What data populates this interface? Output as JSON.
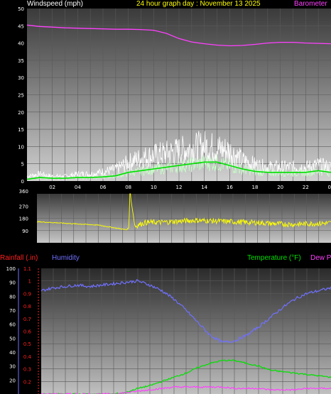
{
  "header": {
    "left_label": "Windspeed (mph)",
    "center_label": "24 hour graph day : November 13 2025",
    "right_label": "Barometer"
  },
  "lower_header": {
    "rainfall_label": "Rainfall (.in)",
    "humidity_label": "Humidity",
    "temperature_label": "Temperature (°F)",
    "dewpoint_label": "Dew P"
  },
  "colors": {
    "windspeed": "#ffffff",
    "wind_avg": "#00e000",
    "barometer": "#ff40ff",
    "direction": "#ffff00",
    "rainfall": "#ff2020",
    "humidity": "#7070ff",
    "temperature": "#00e000",
    "dewpoint": "#ff40ff",
    "header_title": "#ffff00"
  },
  "chart_data": [
    {
      "type": "line",
      "name": "wind-barometer",
      "x_ticks": [
        "02",
        "04",
        "06",
        "08",
        "10",
        "12",
        "14",
        "16",
        "18",
        "20",
        "22",
        "00"
      ],
      "y_ticks": [
        "0",
        "5",
        "10",
        "15",
        "20",
        "25",
        "30",
        "35",
        "40",
        "45",
        "50"
      ],
      "ylim": [
        0,
        50
      ],
      "xlim": [
        0,
        24
      ],
      "grid": true,
      "series": [
        {
          "key": "barometer",
          "x": [
            0,
            1,
            2,
            3,
            4,
            5,
            6,
            7,
            8,
            9,
            10,
            11,
            12,
            13,
            14,
            15,
            16,
            17,
            18,
            19,
            20,
            21,
            22,
            23,
            24
          ],
          "values": [
            45.2,
            44.8,
            44.6,
            44.4,
            44.3,
            44.2,
            44.1,
            44.0,
            44.0,
            43.9,
            43.7,
            42.8,
            41.3,
            40.3,
            39.8,
            39.4,
            39.2,
            39.3,
            39.6,
            40.0,
            40.2,
            40.2,
            40.0,
            39.9,
            39.8
          ]
        },
        {
          "key": "wind_gust",
          "x": [
            0,
            1,
            2,
            3,
            4,
            5,
            6,
            7,
            8,
            9,
            10,
            11,
            12,
            13,
            14,
            15,
            16,
            17,
            18,
            19,
            20,
            21,
            22,
            23,
            24
          ],
          "values": [
            2,
            3,
            2,
            2,
            3,
            3,
            4,
            5,
            8,
            10,
            11,
            12,
            13,
            14,
            15,
            14,
            13,
            9,
            7,
            6,
            6,
            6,
            6,
            7,
            6
          ]
        },
        {
          "key": "wind_avg",
          "x": [
            0,
            1,
            2,
            3,
            4,
            5,
            6,
            7,
            8,
            9,
            10,
            11,
            12,
            13,
            14,
            15,
            16,
            17,
            18,
            19,
            20,
            21,
            22,
            23,
            24
          ],
          "values": [
            0.5,
            1,
            0.8,
            0.8,
            1,
            1,
            1.2,
            1.5,
            2.5,
            3,
            3.5,
            4,
            4.5,
            5,
            5.5,
            5.5,
            4.5,
            3.5,
            2.8,
            2.5,
            2.5,
            2.5,
            2.5,
            3,
            2.5
          ]
        }
      ]
    },
    {
      "type": "line",
      "name": "wind-direction",
      "y_ticks": [
        "90",
        "180",
        "270",
        "360"
      ],
      "extra_tick": "360",
      "ylim": [
        0,
        360
      ],
      "xlim": [
        0,
        24
      ],
      "series": [
        {
          "key": "direction",
          "x": [
            0,
            1,
            2,
            3,
            4,
            5,
            6,
            7,
            7.3,
            7.5,
            7.6,
            8,
            8.5,
            9,
            10,
            11,
            12,
            13,
            14,
            15,
            16,
            17,
            18,
            19,
            20,
            21,
            22,
            23,
            24
          ],
          "values": [
            155,
            150,
            145,
            140,
            135,
            130,
            115,
            100,
            95,
            110,
            360,
            120,
            140,
            150,
            150,
            155,
            160,
            165,
            162,
            158,
            155,
            150,
            148,
            142,
            138,
            135,
            140,
            142,
            145
          ]
        }
      ]
    },
    {
      "type": "line",
      "name": "rain-humidity-temp",
      "humidity_ticks": [
        "20",
        "30",
        "40",
        "50",
        "60",
        "70",
        "80",
        "90",
        "100"
      ],
      "rain_ticks": [
        "0.2",
        "0.3",
        "0.4",
        "0.5",
        "0.6",
        "0.7",
        "0.8",
        "0.9",
        "1",
        "1.1"
      ],
      "ylim": [
        0,
        100
      ],
      "xlim": [
        0,
        24
      ],
      "series": [
        {
          "key": "humidity",
          "x": [
            0,
            1,
            2,
            3,
            4,
            5,
            6,
            7,
            8,
            9,
            10,
            11,
            12,
            13,
            14,
            15,
            16,
            17,
            18,
            19,
            20,
            21,
            22,
            23,
            24
          ],
          "values": [
            84,
            86,
            87,
            88,
            87,
            88,
            89,
            90,
            91,
            88,
            84,
            78,
            70,
            61,
            52,
            47,
            48,
            52,
            58,
            65,
            72,
            78,
            82,
            84,
            86
          ]
        },
        {
          "key": "temperature",
          "x": [
            0,
            6,
            7,
            8,
            9,
            10,
            11,
            12,
            13,
            14,
            15,
            16,
            17,
            18,
            19,
            20,
            21,
            22,
            23,
            24
          ],
          "values": [
            10,
            10,
            11,
            14,
            16,
            19,
            22,
            25,
            29,
            32,
            34,
            34,
            32,
            30,
            27,
            26,
            25,
            24,
            23,
            22
          ]
        },
        {
          "key": "dewpoint",
          "x": [
            0,
            6,
            7,
            8,
            9,
            10,
            11,
            12,
            13,
            14,
            15,
            16,
            17,
            18,
            19,
            20,
            21,
            22,
            23,
            24
          ],
          "values": [
            10,
            10,
            11,
            12,
            13,
            14,
            15,
            15,
            15,
            15,
            15,
            14,
            14,
            14,
            13,
            13,
            13,
            14,
            14,
            14
          ]
        }
      ]
    }
  ]
}
